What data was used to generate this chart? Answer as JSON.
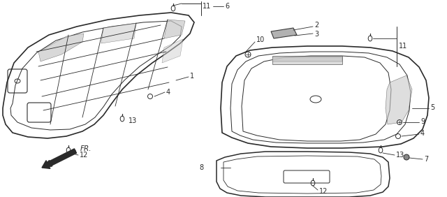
{
  "bg_color": "#ffffff",
  "line_color": "#2a2a2a",
  "fig_width": 6.4,
  "fig_height": 2.82,
  "dpi": 100
}
